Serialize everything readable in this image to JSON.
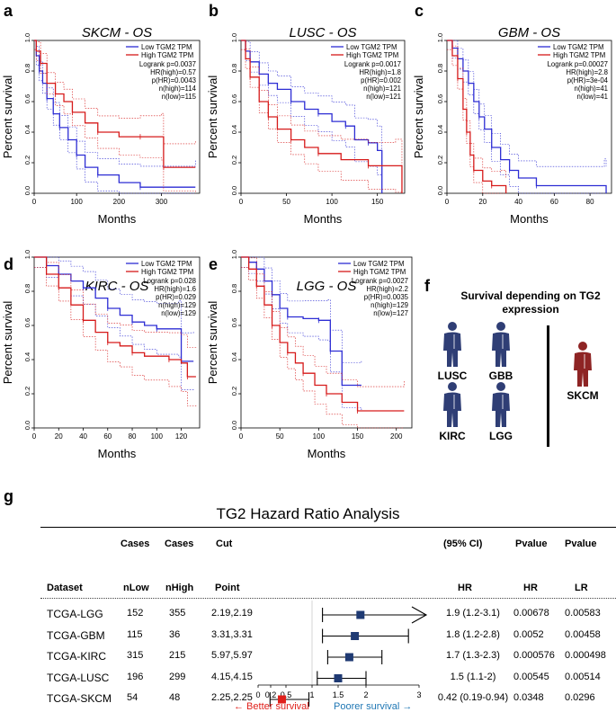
{
  "panels": [
    {
      "letter": "a",
      "title": "SKCM - OS",
      "xlabel": "Months",
      "ylabel": "Percent survival",
      "legend": [
        "Low TGM2 TPM",
        "High TGM2 TPM"
      ],
      "stats": [
        "Logrank p=0.0037",
        "HR(high)=0.57",
        "p(HR)=0.0043",
        "n(high)=114",
        "n(low)=115"
      ],
      "xticks": [
        "0",
        "100",
        "200",
        "300"
      ],
      "xmax": 390,
      "yticks": [
        "0.0",
        "0.2",
        "0.4",
        "0.6",
        "0.8",
        "1.0"
      ],
      "low": [
        [
          0,
          1
        ],
        [
          5,
          0.9
        ],
        [
          12,
          0.8
        ],
        [
          20,
          0.72
        ],
        [
          30,
          0.62
        ],
        [
          45,
          0.52
        ],
        [
          60,
          0.43
        ],
        [
          80,
          0.35
        ],
        [
          100,
          0.25
        ],
        [
          120,
          0.17
        ],
        [
          150,
          0.12
        ],
        [
          200,
          0.07
        ],
        [
          250,
          0.04
        ],
        [
          380,
          0.04
        ]
      ],
      "high": [
        [
          0,
          1
        ],
        [
          5,
          0.93
        ],
        [
          15,
          0.85
        ],
        [
          30,
          0.72
        ],
        [
          50,
          0.65
        ],
        [
          70,
          0.6
        ],
        [
          90,
          0.53
        ],
        [
          120,
          0.46
        ],
        [
          150,
          0.4
        ],
        [
          200,
          0.37
        ],
        [
          250,
          0.37
        ],
        [
          300,
          0.37
        ],
        [
          305,
          0.17
        ],
        [
          380,
          0.17
        ]
      ]
    },
    {
      "letter": "b",
      "title": "LUSC - OS",
      "xlabel": "Months",
      "ylabel": "Percent survival",
      "legend": [
        "Low TGM2 TPM",
        "High TGM2 TPM"
      ],
      "stats": [
        "Logrank p=0.0017",
        "HR(high)=1.8",
        "p(HR)=0.002",
        "n(high)=121",
        "n(low)=121"
      ],
      "xticks": [
        "0",
        "50",
        "100",
        "150"
      ],
      "xmax": 180,
      "yticks": [
        "0.0",
        "0.2",
        "0.4",
        "0.6",
        "0.8",
        "1.0"
      ],
      "low": [
        [
          0,
          1
        ],
        [
          5,
          0.93
        ],
        [
          10,
          0.86
        ],
        [
          20,
          0.78
        ],
        [
          30,
          0.72
        ],
        [
          40,
          0.68
        ],
        [
          55,
          0.6
        ],
        [
          70,
          0.55
        ],
        [
          85,
          0.52
        ],
        [
          100,
          0.47
        ],
        [
          115,
          0.44
        ],
        [
          125,
          0.35
        ],
        [
          140,
          0.33
        ],
        [
          150,
          0.28
        ],
        [
          155,
          0.0
        ]
      ],
      "high": [
        [
          0,
          1
        ],
        [
          5,
          0.88
        ],
        [
          10,
          0.76
        ],
        [
          20,
          0.6
        ],
        [
          30,
          0.5
        ],
        [
          40,
          0.42
        ],
        [
          55,
          0.35
        ],
        [
          70,
          0.3
        ],
        [
          85,
          0.26
        ],
        [
          110,
          0.22
        ],
        [
          140,
          0.18
        ],
        [
          170,
          0.18
        ],
        [
          177,
          0.0
        ]
      ]
    },
    {
      "letter": "c",
      "title": "GBM - OS",
      "xlabel": "Months",
      "ylabel": "Percent survival",
      "legend": [
        "Low TGM2 TPM",
        "High TGM2 TPM"
      ],
      "stats": [
        "Logrank p=0.00027",
        "HR(high)=2.8",
        "p(HR)=3e-04",
        "n(high)=41",
        "n(low)=41"
      ],
      "xticks": [
        "0",
        "20",
        "40",
        "60",
        "80"
      ],
      "xmax": 92,
      "yticks": [
        "0.0",
        "0.2",
        "0.4",
        "0.6",
        "0.8",
        "1.0"
      ],
      "low": [
        [
          0,
          1
        ],
        [
          3,
          0.95
        ],
        [
          6,
          0.88
        ],
        [
          9,
          0.8
        ],
        [
          12,
          0.72
        ],
        [
          15,
          0.6
        ],
        [
          18,
          0.5
        ],
        [
          21,
          0.42
        ],
        [
          25,
          0.3
        ],
        [
          30,
          0.22
        ],
        [
          35,
          0.15
        ],
        [
          40,
          0.1
        ],
        [
          50,
          0.05
        ],
        [
          88,
          0.05
        ],
        [
          89,
          0.0
        ]
      ],
      "high": [
        [
          0,
          1
        ],
        [
          3,
          0.9
        ],
        [
          6,
          0.75
        ],
        [
          9,
          0.55
        ],
        [
          11,
          0.4
        ],
        [
          13,
          0.25
        ],
        [
          15,
          0.15
        ],
        [
          20,
          0.08
        ],
        [
          25,
          0.05
        ],
        [
          30,
          0.05
        ],
        [
          33,
          0.0
        ]
      ]
    },
    {
      "letter": "d",
      "title": "KIRC - OS",
      "xlabel": "Months",
      "ylabel": "Percent survival",
      "legend": [
        "Low TGM2 TPM",
        "High TGM2 TPM"
      ],
      "stats": [
        "Logrank p=0.028",
        "HR(high)=1.6",
        "p(HR)=0.029",
        "n(high)=129",
        "n(low)=129"
      ],
      "xticks": [
        "0",
        "20",
        "40",
        "60",
        "80",
        "100",
        "120"
      ],
      "xmax": 135,
      "yticks": [
        "0.0",
        "0.2",
        "0.4",
        "0.6",
        "0.8",
        "1.0"
      ],
      "low": [
        [
          0,
          1
        ],
        [
          10,
          0.95
        ],
        [
          20,
          0.9
        ],
        [
          30,
          0.86
        ],
        [
          40,
          0.82
        ],
        [
          50,
          0.76
        ],
        [
          60,
          0.7
        ],
        [
          70,
          0.66
        ],
        [
          80,
          0.62
        ],
        [
          90,
          0.6
        ],
        [
          100,
          0.58
        ],
        [
          118,
          0.58
        ],
        [
          120,
          0.39
        ],
        [
          130,
          0.39
        ]
      ],
      "high": [
        [
          0,
          1
        ],
        [
          10,
          0.9
        ],
        [
          20,
          0.82
        ],
        [
          30,
          0.72
        ],
        [
          40,
          0.63
        ],
        [
          50,
          0.56
        ],
        [
          60,
          0.5
        ],
        [
          70,
          0.48
        ],
        [
          80,
          0.44
        ],
        [
          90,
          0.42
        ],
        [
          110,
          0.4
        ],
        [
          120,
          0.38
        ],
        [
          125,
          0.3
        ],
        [
          132,
          0.3
        ]
      ]
    },
    {
      "letter": "e",
      "title": "LGG - OS",
      "xlabel": "Months",
      "ylabel": "Percent survival",
      "legend": [
        "Low TGM2 TPM",
        "High TGM2 TPM"
      ],
      "stats": [
        "Logrank p=0.0027",
        "HR(high)=2.2",
        "p(HR)=0.0035",
        "n(high)=129",
        "n(low)=127"
      ],
      "xticks": [
        "0",
        "50",
        "100",
        "150",
        "200"
      ],
      "xmax": 220,
      "yticks": [
        "0.0",
        "0.2",
        "0.4",
        "0.6",
        "0.8",
        "1.0"
      ],
      "low": [
        [
          0,
          1
        ],
        [
          10,
          0.97
        ],
        [
          20,
          0.93
        ],
        [
          30,
          0.86
        ],
        [
          40,
          0.78
        ],
        [
          50,
          0.7
        ],
        [
          60,
          0.65
        ],
        [
          80,
          0.64
        ],
        [
          100,
          0.63
        ],
        [
          112,
          0.63
        ],
        [
          115,
          0.45
        ],
        [
          130,
          0.25
        ],
        [
          155,
          0.25
        ]
      ],
      "high": [
        [
          0,
          1
        ],
        [
          10,
          0.93
        ],
        [
          20,
          0.83
        ],
        [
          30,
          0.72
        ],
        [
          40,
          0.6
        ],
        [
          50,
          0.5
        ],
        [
          60,
          0.44
        ],
        [
          70,
          0.38
        ],
        [
          80,
          0.32
        ],
        [
          95,
          0.25
        ],
        [
          110,
          0.2
        ],
        [
          130,
          0.15
        ],
        [
          150,
          0.1
        ],
        [
          210,
          0.1
        ]
      ]
    }
  ],
  "panel_f": {
    "letter": "f",
    "title_line1": "Survival depending on TG2",
    "title_line2": "expression",
    "left": [
      "LUSC",
      "GBB",
      "KIRC",
      "LGG"
    ],
    "right": "SKCM",
    "colors": {
      "poor": "#2f3e75",
      "better": "#8e2424"
    }
  },
  "panel_g": {
    "letter": "g",
    "title": "TG2 Hazard Ratio Analysis",
    "header_row1": [
      "Cases",
      "Cases",
      "Cut",
      "(95% CI)",
      "Pvalue",
      "Pvalue"
    ],
    "header_row2": [
      "Dataset",
      "nLow",
      "nHigh",
      "Point",
      "HR",
      "HR",
      "LR"
    ],
    "rows": [
      {
        "dataset": "TCGA-LGG",
        "nlow": "152",
        "nhigh": "355",
        "cut": "2.19,2.19",
        "hr": 1.9,
        "lo": 1.2,
        "hi": 3.1,
        "ci": "1.9 (1.2-3.1)",
        "phr": "0.00678",
        "plr": "0.00583",
        "color": "#1f3a73"
      },
      {
        "dataset": "TCGA-GBM",
        "nlow": "115",
        "nhigh": "36",
        "cut": "3.31,3.31",
        "hr": 1.8,
        "lo": 1.2,
        "hi": 2.8,
        "ci": "1.8 (1.2-2.8)",
        "phr": "0.0052",
        "plr": "0.00458",
        "color": "#1f3a73"
      },
      {
        "dataset": "TCGA-KIRC",
        "nlow": "315",
        "nhigh": "215",
        "cut": "5.97,5.97",
        "hr": 1.7,
        "lo": 1.3,
        "hi": 2.3,
        "ci": "1.7 (1.3-2.3)",
        "phr": "0.000576",
        "plr": "0.000498",
        "color": "#1f3a73"
      },
      {
        "dataset": "TCGA-LUSC",
        "nlow": "196",
        "nhigh": "299",
        "cut": "4.15,4.15",
        "hr": 1.5,
        "lo": 1.1,
        "hi": 2.0,
        "ci": "1.5 (1.1-2)",
        "phr": "0.00545",
        "plr": "0.00514",
        "color": "#1f3a73"
      },
      {
        "dataset": "TCGA-SKCM",
        "nlow": "54",
        "nhigh": "48",
        "cut": "2.25,2.25",
        "hr": 0.42,
        "lo": 0.19,
        "hi": 0.94,
        "ci": "0.42 (0.19-0.94)",
        "phr": "0.0348",
        "plr": "0.0296",
        "color": "#e0201b"
      }
    ],
    "axis_ticks": [
      "0",
      "0.2",
      "0.5",
      "1",
      "1.5",
      "2",
      "3"
    ],
    "axis_values": [
      0,
      0.2,
      0.5,
      1,
      1.5,
      2,
      3
    ],
    "better_label": "← Better survival",
    "poorer_label": "Poorer survival →",
    "better_color": "#e0201b",
    "poorer_color": "#1f77b4"
  }
}
